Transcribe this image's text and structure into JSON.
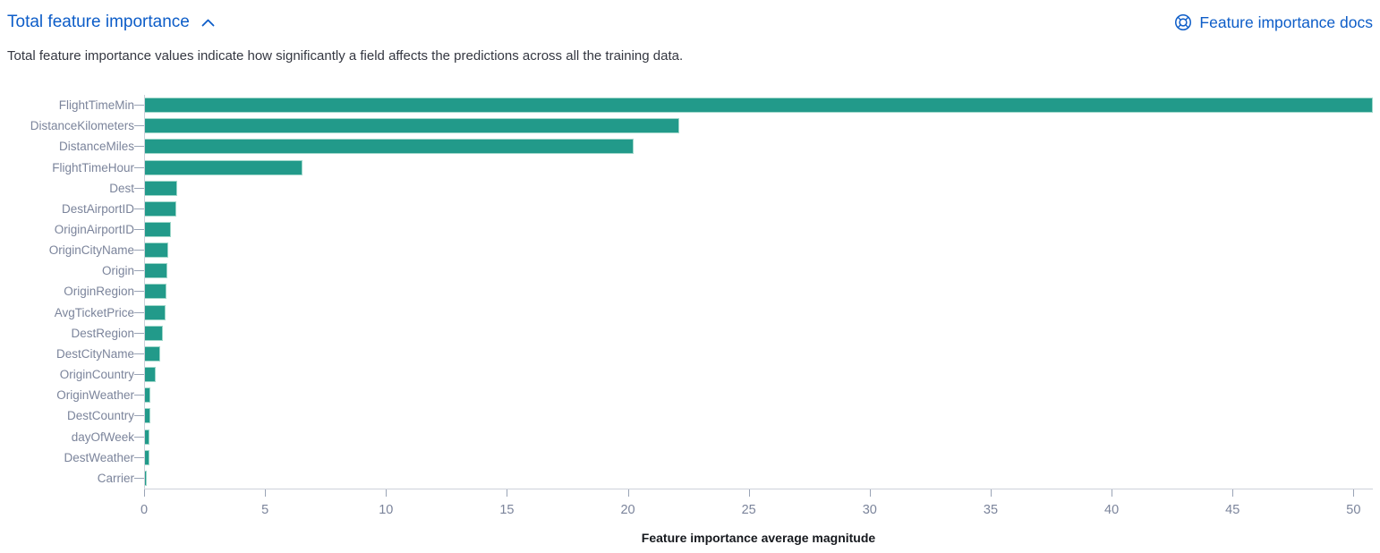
{
  "header": {
    "title": "Total feature importance",
    "collapse_icon": "chevron-up",
    "docs_link_label": "Feature importance docs",
    "docs_icon": "lifering-help"
  },
  "description": "Total feature importance values indicate how significantly a field affects the predictions across all the training data.",
  "chart_data": {
    "type": "bar",
    "orientation": "horizontal",
    "title": "Total feature importance",
    "xlabel": "Feature importance average magnitude",
    "ylabel": "",
    "xlim": [
      0,
      50.8
    ],
    "x_ticks": [
      0,
      5,
      10,
      15,
      20,
      25,
      30,
      35,
      40,
      45,
      50
    ],
    "grid": false,
    "legend": "none",
    "categories": [
      "FlightTimeMin",
      "DistanceKilometers",
      "DistanceMiles",
      "FlightTimeHour",
      "Dest",
      "DestAirportID",
      "OriginAirportID",
      "OriginCityName",
      "Origin",
      "OriginRegion",
      "AvgTicketPrice",
      "DestRegion",
      "DestCityName",
      "OriginCountry",
      "OriginWeather",
      "DestCountry",
      "dayOfWeek",
      "DestWeather",
      "Carrier"
    ],
    "values": [
      50.8,
      22.1,
      20.2,
      6.5,
      1.34,
      1.31,
      1.09,
      0.96,
      0.93,
      0.9,
      0.85,
      0.74,
      0.62,
      0.44,
      0.23,
      0.21,
      0.2,
      0.17,
      0.08
    ],
    "bar_color": "#229a8a"
  },
  "colors": {
    "link_blue": "#0d5dc8",
    "body_text": "#343741",
    "axis_label": "#7b849b",
    "axis_line": "#cdd1da",
    "tick_mark": "#9aa4b6",
    "bar_fill": "#229a8a",
    "bar_stroke": "#a0d8cb",
    "x_title_text": "#16191e"
  }
}
